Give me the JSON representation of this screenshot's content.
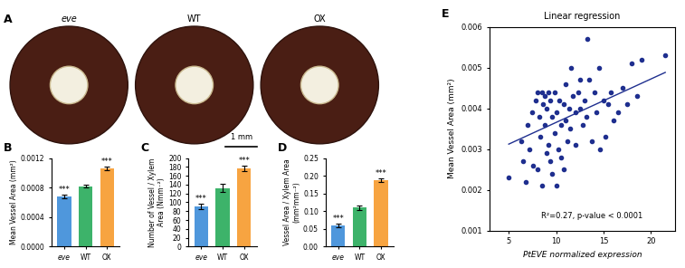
{
  "panel_A": {
    "panel_label": "A",
    "samples": [
      "eve",
      "WT",
      "OX"
    ],
    "scale_bar": "1 mm"
  },
  "chart_data": [
    {
      "type": "bar",
      "panel_label": "B",
      "categories": [
        "eve",
        "WT",
        "OX"
      ],
      "values": [
        0.00068,
        0.00082,
        0.00106
      ],
      "errors": [
        2e-05,
        2e-05,
        3e-05
      ],
      "significance": [
        "***",
        null,
        "***"
      ],
      "colors": [
        "#4f97dc",
        "#3db36a",
        "#f7a441"
      ],
      "y_label": "Mean Vessel Area (mm²)",
      "ylim": [
        0,
        0.0012
      ],
      "yticks": [
        {
          "value": 0,
          "label": "0.0000"
        },
        {
          "value": 0.0004,
          "label": "0.0004"
        },
        {
          "value": 0.0008,
          "label": "0.0008"
        },
        {
          "value": 0.0012,
          "label": "0.0012"
        }
      ]
    },
    {
      "type": "bar",
      "panel_label": "C",
      "categories": [
        "eve",
        "WT",
        "OX"
      ],
      "values": [
        90,
        132,
        176
      ],
      "errors": [
        6,
        9,
        6
      ],
      "significance": [
        "***",
        null,
        "***"
      ],
      "colors": [
        "#4f97dc",
        "#3db36a",
        "#f7a441"
      ],
      "y_label": "Number of Vessel / Xylem\nArea (Nmm⁻²)",
      "ylim": [
        0,
        200
      ],
      "yticks": [
        0,
        20,
        40,
        60,
        80,
        100,
        120,
        140,
        160,
        180,
        200
      ]
    },
    {
      "type": "bar",
      "panel_label": "D",
      "categories": [
        "eve",
        "WT",
        "OX"
      ],
      "values": [
        0.06,
        0.11,
        0.188
      ],
      "errors": [
        0.005,
        0.006,
        0.006
      ],
      "significance": [
        "***",
        null,
        "***"
      ],
      "colors": [
        "#4f97dc",
        "#3db36a",
        "#f7a441"
      ],
      "y_label": "Vessel Area / Xylem Area\n(mm²mm⁻²)",
      "ylim": [
        0,
        0.25
      ],
      "yticks": [
        {
          "value": 0,
          "label": "0.00"
        },
        {
          "value": 0.05,
          "label": "0.05"
        },
        {
          "value": 0.1,
          "label": "0.10"
        },
        {
          "value": 0.15,
          "label": "0.15"
        },
        {
          "value": 0.2,
          "label": "0.20"
        },
        {
          "value": 0.25,
          "label": "0.25"
        }
      ]
    },
    {
      "type": "scatter",
      "panel_label": "E",
      "title": "Linear regression",
      "x_label": "PtEVE normalized expression",
      "y_label": "Mean Vessel Area (mm²)",
      "color": "#1f2f8f",
      "x": [
        5.0,
        6.3,
        6.5,
        6.8,
        7.0,
        7.2,
        7.5,
        7.6,
        7.8,
        8.0,
        8.0,
        8.2,
        8.3,
        8.5,
        8.5,
        8.6,
        8.8,
        8.8,
        9.0,
        9.0,
        9.2,
        9.2,
        9.4,
        9.4,
        9.6,
        9.6,
        9.8,
        9.8,
        10.0,
        10.0,
        10.2,
        10.3,
        10.5,
        10.5,
        10.8,
        10.8,
        11.0,
        11.0,
        11.2,
        11.4,
        11.5,
        11.6,
        11.8,
        12.0,
        12.0,
        12.3,
        12.5,
        12.5,
        12.8,
        13.0,
        13.2,
        13.3,
        13.5,
        13.8,
        14.0,
        14.2,
        14.5,
        14.6,
        15.0,
        15.2,
        15.5,
        15.8,
        16.0,
        16.5,
        17.0,
        17.5,
        18.0,
        18.5,
        19.0,
        21.5
      ],
      "values": [
        0.0023,
        0.0032,
        0.0027,
        0.0022,
        0.0036,
        0.003,
        0.0039,
        0.0026,
        0.0042,
        0.0044,
        0.0025,
        0.0038,
        0.0033,
        0.0044,
        0.0021,
        0.0041,
        0.0043,
        0.0036,
        0.0029,
        0.004,
        0.0044,
        0.0031,
        0.0042,
        0.0027,
        0.0024,
        0.0038,
        0.0044,
        0.0034,
        0.0039,
        0.0021,
        0.003,
        0.0042,
        0.0028,
        0.0036,
        0.0041,
        0.0025,
        0.0037,
        0.0046,
        0.0032,
        0.004,
        0.0035,
        0.005,
        0.0043,
        0.0039,
        0.0031,
        0.0044,
        0.004,
        0.0047,
        0.0036,
        0.0042,
        0.0038,
        0.0057,
        0.0047,
        0.0032,
        0.0044,
        0.0039,
        0.005,
        0.003,
        0.0042,
        0.0033,
        0.0041,
        0.0044,
        0.0037,
        0.0039,
        0.0045,
        0.0041,
        0.0051,
        0.0043,
        0.0052,
        0.0053
      ],
      "fit": {
        "x": [
          5.0,
          21.5
        ],
        "values": [
          0.00312,
          0.00488
        ]
      },
      "annotations": [
        "R²=0.27, p-value < 0.0001"
      ],
      "xlim": [
        3,
        22.5
      ],
      "xticks": [
        5,
        10,
        15,
        20
      ],
      "ylim": [
        0.001,
        0.006
      ],
      "yticks": [
        0.001,
        0.002,
        0.003,
        0.004,
        0.005,
        0.006
      ]
    }
  ]
}
